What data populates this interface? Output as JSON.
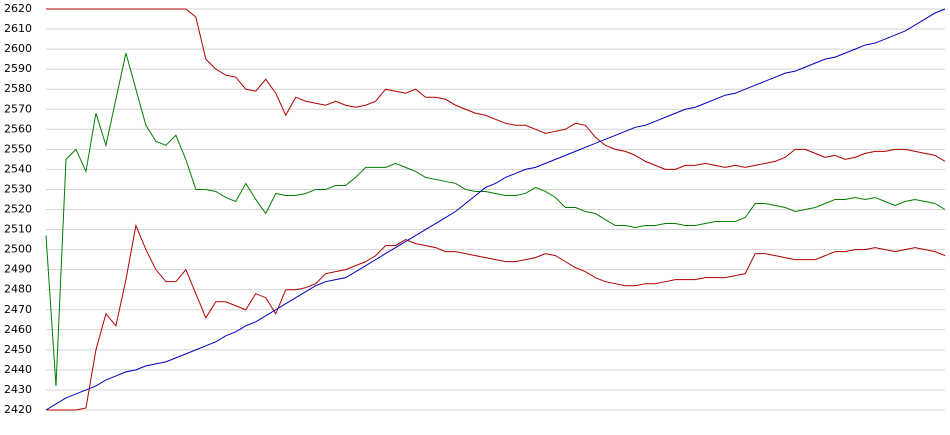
{
  "chart_data": {
    "type": "line",
    "ylim": [
      2420,
      2620
    ],
    "yticks": [
      2420,
      2430,
      2440,
      2450,
      2460,
      2470,
      2480,
      2490,
      2500,
      2510,
      2520,
      2530,
      2540,
      2550,
      2560,
      2570,
      2580,
      2590,
      2600,
      2610,
      2620
    ],
    "grid": true,
    "series": [
      {
        "color": "#b00000",
        "values": [
          2620,
          2620,
          2620,
          2620,
          2620,
          2620,
          2620,
          2620,
          2620,
          2620,
          2620,
          2620,
          2620,
          2620,
          2620,
          2616,
          2595,
          2590,
          2587,
          2586,
          2580,
          2579,
          2585,
          2578,
          2567,
          2576,
          2574,
          2573,
          2572,
          2574,
          2572,
          2571,
          2572,
          2574,
          2580,
          2579,
          2578,
          2580,
          2576,
          2576,
          2575,
          2572,
          2570,
          2568,
          2567,
          2565,
          2563,
          2562,
          2562,
          2560,
          2558,
          2559,
          2560,
          2563,
          2562,
          2556,
          2552,
          2550,
          2549,
          2547,
          2544,
          2542,
          2540,
          2540,
          2542,
          2542,
          2543,
          2542,
          2541,
          2542,
          2541,
          2542,
          2543,
          2544,
          2546,
          2550,
          2550,
          2548,
          2546,
          2547,
          2545,
          2546,
          2548,
          2549,
          2549,
          2550,
          2550,
          2549,
          2548,
          2547,
          2544
        ]
      },
      {
        "color": "#008000",
        "values": [
          2507,
          2432,
          2545,
          2550,
          2539,
          2568,
          2552,
          2575,
          2598,
          2580,
          2562,
          2554,
          2552,
          2557,
          2545,
          2530,
          2530,
          2529,
          2526,
          2524,
          2533,
          2525,
          2518,
          2528,
          2527,
          2527,
          2528,
          2530,
          2530,
          2532,
          2532,
          2536,
          2541,
          2541,
          2541,
          2543,
          2541,
          2539,
          2536,
          2535,
          2534,
          2533,
          2530,
          2529,
          2529,
          2528,
          2527,
          2527,
          2528,
          2531,
          2529,
          2526,
          2521,
          2521,
          2519,
          2518,
          2515,
          2512,
          2512,
          2511,
          2512,
          2512,
          2513,
          2513,
          2512,
          2512,
          2513,
          2514,
          2514,
          2514,
          2516,
          2523,
          2523,
          2522,
          2521,
          2519,
          2520,
          2521,
          2523,
          2525,
          2525,
          2526,
          2525,
          2526,
          2524,
          2522,
          2524,
          2525,
          2524,
          2523,
          2520
        ]
      },
      {
        "color": "#b00000",
        "values": [
          2420,
          2420,
          2420,
          2420,
          2421,
          2450,
          2468,
          2462,
          2485,
          2512,
          2500,
          2490,
          2484,
          2484,
          2490,
          2478,
          2466,
          2474,
          2474,
          2472,
          2470,
          2478,
          2476,
          2468,
          2480,
          2480,
          2481,
          2483,
          2488,
          2489,
          2490,
          2492,
          2494,
          2497,
          2502,
          2502,
          2505,
          2503,
          2502,
          2501,
          2499,
          2499,
          2498,
          2497,
          2496,
          2495,
          2494,
          2494,
          2495,
          2496,
          2498,
          2497,
          2494,
          2491,
          2489,
          2486,
          2484,
          2483,
          2482,
          2482,
          2483,
          2483,
          2484,
          2485,
          2485,
          2485,
          2486,
          2486,
          2486,
          2487,
          2488,
          2498,
          2498,
          2497,
          2496,
          2495,
          2495,
          2495,
          2497,
          2499,
          2499,
          2500,
          2500,
          2501,
          2500,
          2499,
          2500,
          2501,
          2500,
          2499,
          2497
        ]
      },
      {
        "color": "#0000c0",
        "values": [
          2420,
          2423,
          2426,
          2428,
          2430,
          2432,
          2435,
          2437,
          2439,
          2440,
          2442,
          2443,
          2444,
          2446,
          2448,
          2450,
          2452,
          2454,
          2457,
          2459,
          2462,
          2464,
          2467,
          2470,
          2473,
          2476,
          2479,
          2482,
          2484,
          2485,
          2486,
          2489,
          2492,
          2495,
          2498,
          2501,
          2504,
          2507,
          2510,
          2513,
          2516,
          2519,
          2523,
          2527,
          2531,
          2533,
          2536,
          2538,
          2540,
          2541,
          2543,
          2545,
          2547,
          2549,
          2551,
          2553,
          2555,
          2557,
          2559,
          2561,
          2562,
          2564,
          2566,
          2568,
          2570,
          2571,
          2573,
          2575,
          2577,
          2578,
          2580,
          2582,
          2584,
          2586,
          2588,
          2589,
          2591,
          2593,
          2595,
          2596,
          2598,
          2600,
          2602,
          2603,
          2605,
          2607,
          2609,
          2612,
          2615,
          2618,
          2620
        ]
      }
    ]
  }
}
